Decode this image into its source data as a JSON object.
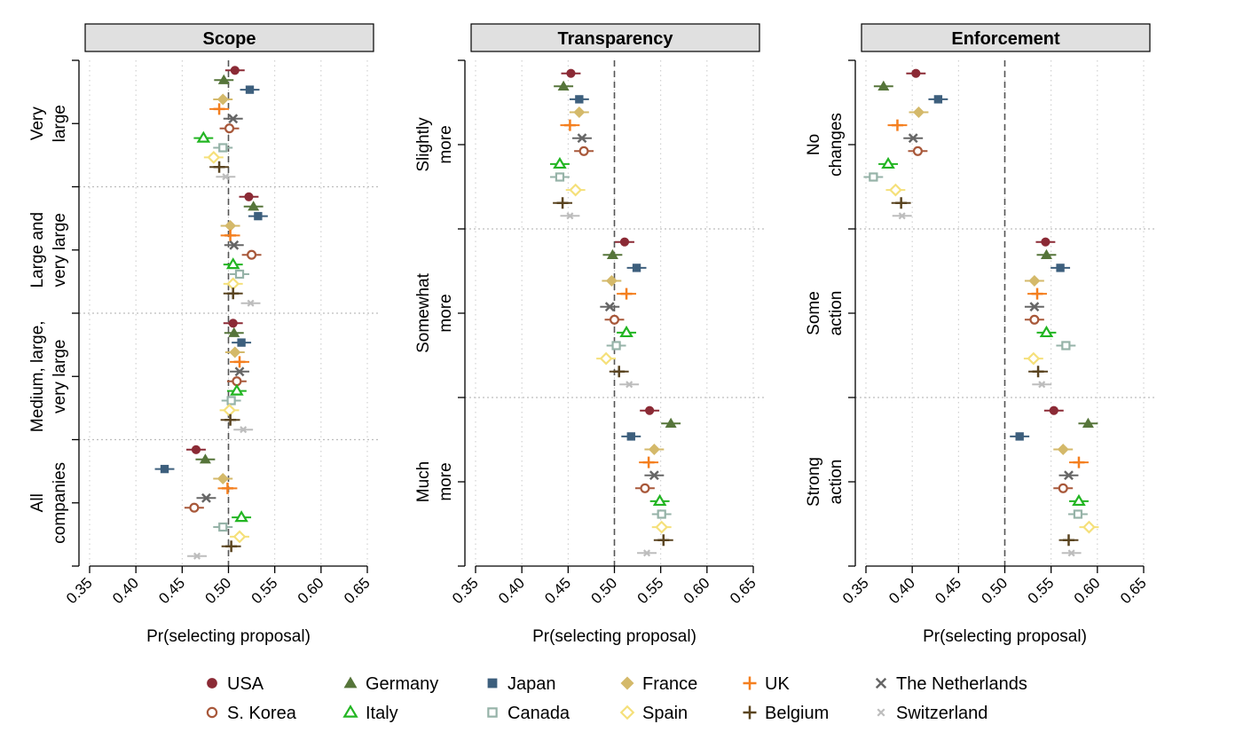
{
  "legend": {
    "countries": [
      {
        "name": "USA",
        "color": "#8b2a35",
        "marker": "filled-circle"
      },
      {
        "name": "Germany",
        "color": "#56753a",
        "marker": "filled-triangle"
      },
      {
        "name": "Japan",
        "color": "#3d5f7d",
        "marker": "filled-square"
      },
      {
        "name": "France",
        "color": "#d4b96a",
        "marker": "filled-diamond"
      },
      {
        "name": "UK",
        "color": "#f47f1f",
        "marker": "plus"
      },
      {
        "name": "The Netherlands",
        "color": "#666666",
        "marker": "cross"
      },
      {
        "name": "S. Korea",
        "color": "#a8583a",
        "marker": "open-circle"
      },
      {
        "name": "Italy",
        "color": "#22b522",
        "marker": "open-triangle"
      },
      {
        "name": "Canada",
        "color": "#96b3a8",
        "marker": "open-square"
      },
      {
        "name": "Spain",
        "color": "#f5e07a",
        "marker": "open-diamond"
      },
      {
        "name": "Belgium",
        "color": "#5a4420",
        "marker": "plus"
      },
      {
        "name": "Switzerland",
        "color": "#bdbdbd",
        "marker": "small-cross"
      }
    ]
  },
  "chart_data": [
    {
      "type": "scatter",
      "title": "Scope",
      "xlabel": "Pr(selecting proposal)",
      "xlim": [
        0.35,
        0.65
      ],
      "xticks": [
        "0.35",
        "0.40",
        "0.45",
        "0.50",
        "0.55",
        "0.60",
        "0.65"
      ],
      "reference_line": 0.5,
      "categories": [
        "Very large",
        "Large and very large",
        "Medium, large, very large",
        "All companies"
      ],
      "category_labels": [
        [
          "Very",
          "large"
        ],
        [
          "Large and",
          "very large"
        ],
        [
          "Medium, large,",
          "very large"
        ],
        [
          "All",
          "companies"
        ]
      ],
      "series": [
        {
          "name": "USA",
          "values": [
            0.507,
            0.522,
            0.505,
            0.465
          ]
        },
        {
          "name": "Germany",
          "values": [
            0.495,
            0.527,
            0.506,
            0.475
          ]
        },
        {
          "name": "Japan",
          "values": [
            0.523,
            0.532,
            0.514,
            0.431
          ]
        },
        {
          "name": "France",
          "values": [
            0.494,
            0.502,
            0.507,
            0.494
          ]
        },
        {
          "name": "UK",
          "values": [
            0.49,
            0.502,
            0.512,
            0.499
          ]
        },
        {
          "name": "The Netherlands",
          "values": [
            0.505,
            0.506,
            0.512,
            0.476
          ]
        },
        {
          "name": "S. Korea",
          "values": [
            0.501,
            0.525,
            0.509,
            0.463
          ]
        },
        {
          "name": "Italy",
          "values": [
            0.473,
            0.505,
            0.509,
            0.514
          ]
        },
        {
          "name": "Canada",
          "values": [
            0.494,
            0.512,
            0.503,
            0.494
          ]
        },
        {
          "name": "Spain",
          "values": [
            0.484,
            0.505,
            0.501,
            0.512
          ]
        },
        {
          "name": "Belgium",
          "values": [
            0.49,
            0.505,
            0.502,
            0.503
          ]
        },
        {
          "name": "Switzerland",
          "values": [
            0.497,
            0.524,
            0.516,
            0.466
          ]
        }
      ]
    },
    {
      "type": "scatter",
      "title": "Transparency",
      "xlabel": "Pr(selecting proposal)",
      "xlim": [
        0.35,
        0.65
      ],
      "xticks": [
        "0.35",
        "0.40",
        "0.45",
        "0.50",
        "0.55",
        "0.60",
        "0.65"
      ],
      "reference_line": 0.5,
      "categories": [
        "Slightly more",
        "Somewhat more",
        "Much more"
      ],
      "category_labels": [
        [
          "Slightly",
          "more"
        ],
        [
          "Somewhat",
          "more"
        ],
        [
          "Much",
          "more"
        ]
      ],
      "series": [
        {
          "name": "USA",
          "values": [
            0.453,
            0.511,
            0.538
          ]
        },
        {
          "name": "Germany",
          "values": [
            0.445,
            0.498,
            0.561
          ]
        },
        {
          "name": "Japan",
          "values": [
            0.462,
            0.524,
            0.518
          ]
        },
        {
          "name": "France",
          "values": [
            0.462,
            0.497,
            0.543
          ]
        },
        {
          "name": "UK",
          "values": [
            0.452,
            0.513,
            0.537
          ]
        },
        {
          "name": "The Netherlands",
          "values": [
            0.465,
            0.495,
            0.543
          ]
        },
        {
          "name": "S. Korea",
          "values": [
            0.467,
            0.5,
            0.533
          ]
        },
        {
          "name": "Italy",
          "values": [
            0.441,
            0.513,
            0.549
          ]
        },
        {
          "name": "Canada",
          "values": [
            0.441,
            0.502,
            0.551
          ]
        },
        {
          "name": "Spain",
          "values": [
            0.458,
            0.491,
            0.551
          ]
        },
        {
          "name": "Belgium",
          "values": [
            0.444,
            0.505,
            0.553
          ]
        },
        {
          "name": "Switzerland",
          "values": [
            0.452,
            0.516,
            0.535
          ]
        }
      ]
    },
    {
      "type": "scatter",
      "title": "Enforcement",
      "xlabel": "Pr(selecting proposal)",
      "xlim": [
        0.35,
        0.65
      ],
      "xticks": [
        "0.35",
        "0.40",
        "0.45",
        "0.50",
        "0.55",
        "0.60",
        "0.65"
      ],
      "reference_line": 0.5,
      "categories": [
        "No changes",
        "Some action",
        "Strong action"
      ],
      "category_labels": [
        [
          "No",
          "changes"
        ],
        [
          "Some",
          "action"
        ],
        [
          "Strong",
          "action"
        ]
      ],
      "series": [
        {
          "name": "USA",
          "values": [
            0.404,
            0.544,
            0.553
          ]
        },
        {
          "name": "Germany",
          "values": [
            0.369,
            0.545,
            0.59
          ]
        },
        {
          "name": "Japan",
          "values": [
            0.428,
            0.56,
            0.516
          ]
        },
        {
          "name": "France",
          "values": [
            0.407,
            0.532,
            0.563
          ]
        },
        {
          "name": "UK",
          "values": [
            0.384,
            0.535,
            0.58
          ]
        },
        {
          "name": "The Netherlands",
          "values": [
            0.401,
            0.532,
            0.569
          ]
        },
        {
          "name": "S. Korea",
          "values": [
            0.406,
            0.532,
            0.563
          ]
        },
        {
          "name": "Italy",
          "values": [
            0.374,
            0.545,
            0.58
          ]
        },
        {
          "name": "Canada",
          "values": [
            0.358,
            0.566,
            0.579
          ]
        },
        {
          "name": "Spain",
          "values": [
            0.382,
            0.531,
            0.591
          ]
        },
        {
          "name": "Belgium",
          "values": [
            0.388,
            0.536,
            0.569
          ]
        },
        {
          "name": "Switzerland",
          "values": [
            0.389,
            0.54,
            0.572
          ]
        }
      ]
    }
  ]
}
